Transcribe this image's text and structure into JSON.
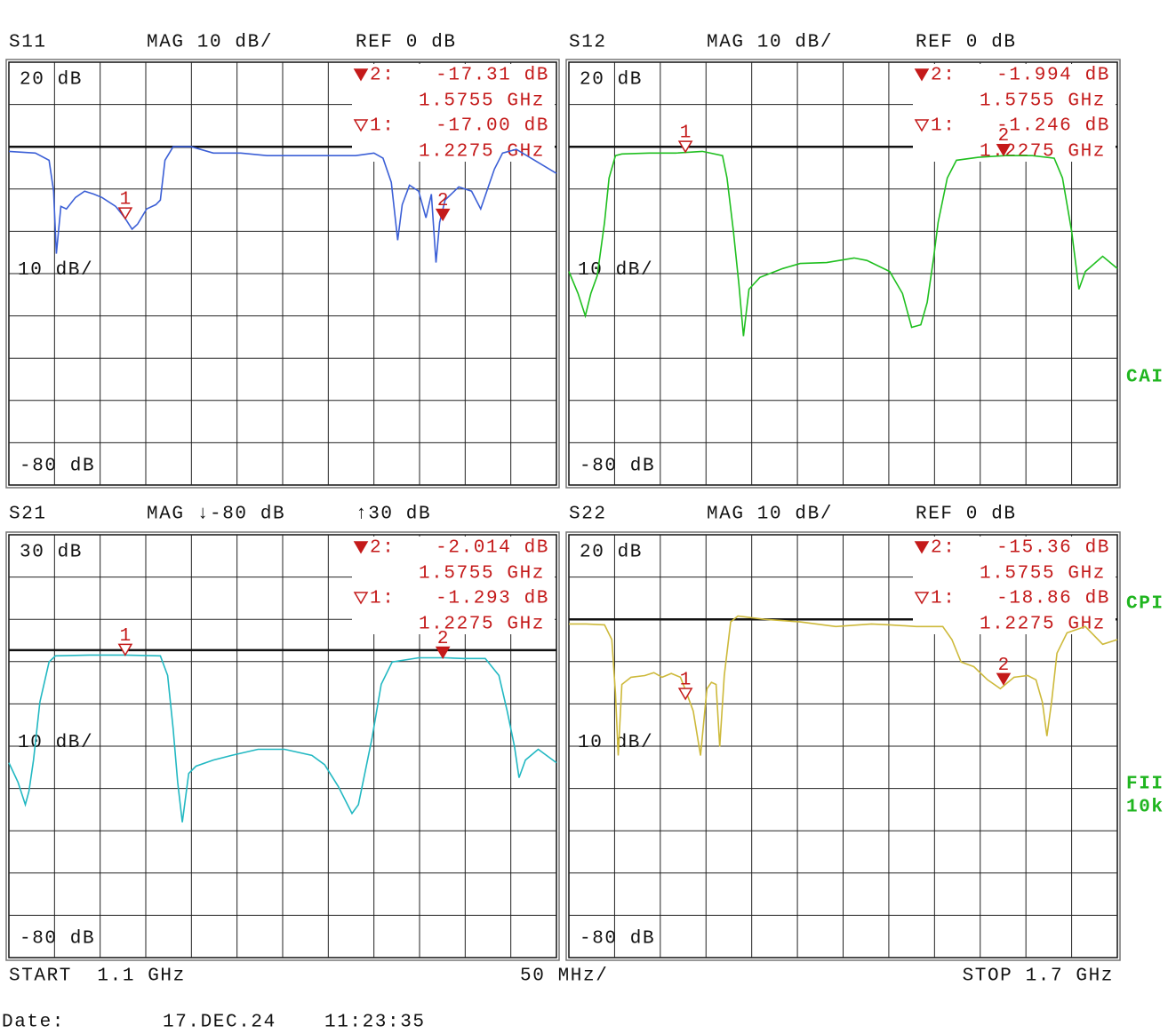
{
  "chart_data": [
    {
      "type": "line",
      "title": "S11",
      "scale_label": "MAG 10 dB/",
      "reference_label": "REF 0 dB",
      "division_label": "10 dB/",
      "xlim": [
        1.1,
        1.7
      ],
      "ylim": [
        -80,
        20
      ],
      "yticks": [
        {
          "value": 20,
          "label": "20 dB"
        },
        {
          "value": -80,
          "label": "-80 dB"
        }
      ],
      "reference_level": 0,
      "grid": true,
      "marker_color": "#c41a1a",
      "series": [
        {
          "color": "#3b5fd6",
          "x": [
            1.1,
            1.129,
            1.144,
            1.149,
            1.152,
            1.157,
            1.163,
            1.173,
            1.183,
            1.193,
            1.202,
            1.217,
            1.227,
            1.235,
            1.241,
            1.251,
            1.261,
            1.266,
            1.271,
            1.28,
            1.3,
            1.324,
            1.354,
            1.383,
            1.432,
            1.48,
            1.5,
            1.51,
            1.519,
            1.526,
            1.531,
            1.539,
            1.549,
            1.557,
            1.563,
            1.568,
            1.572,
            1.578,
            1.593,
            1.607,
            1.617,
            1.622,
            1.632,
            1.641,
            1.656,
            1.676,
            1.7
          ],
          "values": [
            -1.1,
            -1.5,
            -3.2,
            -10.5,
            -25.3,
            -14.1,
            -14.7,
            -12,
            -10.5,
            -11.2,
            -12,
            -14.1,
            -16.8,
            -19.5,
            -18.3,
            -14.7,
            -13.7,
            -12.6,
            -3.2,
            0,
            0,
            -1.5,
            -1.5,
            -2.1,
            -2.1,
            -2.1,
            -1.5,
            -2.7,
            -8.4,
            -22.1,
            -13.7,
            -9.1,
            -10.5,
            -16.8,
            -11.2,
            -27.4,
            -17.9,
            -12.6,
            -9.5,
            -10.5,
            -14.7,
            -11.6,
            -5.3,
            -1.5,
            -0.6,
            -3.2,
            -6.3
          ]
        }
      ],
      "markers": [
        {
          "name": "2",
          "tag": "2:",
          "filled": true,
          "x": 1.5755,
          "value": -17.31,
          "value_label": "-17.31 dB",
          "x_label": "1.5755 GHz"
        },
        {
          "name": "1",
          "tag": "1:",
          "filled": false,
          "x": 1.2275,
          "value": -17,
          "value_label": "-17.00 dB",
          "x_label": "1.2275 GHz"
        }
      ]
    },
    {
      "type": "line",
      "title": "S12",
      "scale_label": "MAG 10 dB/",
      "reference_label": "REF 0 dB",
      "division_label": "10 dB/",
      "xlim": [
        1.1,
        1.7
      ],
      "ylim": [
        -80,
        20
      ],
      "yticks": [
        {
          "value": 20,
          "label": "20 dB"
        },
        {
          "value": -80,
          "label": "-80 dB"
        }
      ],
      "reference_level": 0,
      "grid": true,
      "marker_color": "#c41a1a",
      "series": [
        {
          "color": "#1fbf1f",
          "x": [
            1.1,
            1.11,
            1.118,
            1.124,
            1.131,
            1.139,
            1.144,
            1.151,
            1.158,
            1.188,
            1.217,
            1.246,
            1.268,
            1.273,
            1.28,
            1.286,
            1.291,
            1.297,
            1.309,
            1.334,
            1.353,
            1.382,
            1.412,
            1.426,
            1.451,
            1.465,
            1.475,
            1.485,
            1.492,
            1.499,
            1.504,
            1.514,
            1.524,
            1.548,
            1.577,
            1.607,
            1.631,
            1.64,
            1.65,
            1.658,
            1.665,
            1.684,
            1.7
          ],
          "values": [
            -29.5,
            -34.7,
            -40,
            -34.7,
            -30.5,
            -17.9,
            -7.4,
            -2.1,
            -1.7,
            -1.5,
            -1.5,
            -1.1,
            -2.1,
            -7.4,
            -20,
            -32.6,
            -44.8,
            -33.7,
            -30.9,
            -28.8,
            -27.6,
            -27.4,
            -26.3,
            -26.9,
            -29.5,
            -34.7,
            -42.7,
            -42.1,
            -36.8,
            -26.3,
            -17.9,
            -7.4,
            -3.2,
            -2.5,
            -2.1,
            -2.1,
            -2.7,
            -7.4,
            -20,
            -33.7,
            -29.5,
            -25.9,
            -28.8
          ]
        }
      ],
      "markers": [
        {
          "name": "2",
          "tag": "2:",
          "filled": true,
          "x": 1.5755,
          "value": -1.994,
          "value_label": "-1.994 dB",
          "x_label": "1.5755 GHz"
        },
        {
          "name": "1",
          "tag": "1:",
          "filled": false,
          "x": 1.2275,
          "value": -1.246,
          "value_label": "-1.246 dB",
          "x_label": "1.2275 GHz"
        }
      ]
    },
    {
      "type": "line",
      "title": "S21",
      "scale_label": "MAG ↓-80 dB",
      "reference_label": "↑30 dB",
      "division_label": "10 dB/",
      "xlim": [
        1.1,
        1.7
      ],
      "ylim": [
        -80,
        30
      ],
      "yticks": [
        {
          "value": 30,
          "label": "30 dB"
        },
        {
          "value": -80,
          "label": "-80 dB"
        }
      ],
      "reference_level": 0,
      "grid": true,
      "marker_color": "#c41a1a",
      "series": [
        {
          "color": "#22b8c2",
          "x": [
            1.1,
            1.11,
            1.118,
            1.122,
            1.127,
            1.134,
            1.144,
            1.151,
            1.188,
            1.227,
            1.266,
            1.274,
            1.28,
            1.285,
            1.29,
            1.297,
            1.305,
            1.324,
            1.344,
            1.373,
            1.402,
            1.432,
            1.446,
            1.461,
            1.476,
            1.483,
            1.49,
            1.498,
            1.508,
            1.52,
            1.549,
            1.578,
            1.598,
            1.622,
            1.637,
            1.646,
            1.654,
            1.659,
            1.666,
            1.68,
            1.7
          ],
          "values": [
            -29.3,
            -34.4,
            -40.2,
            -36.7,
            -28.6,
            -13.5,
            -3.1,
            -1.5,
            -1.3,
            -1.3,
            -1.5,
            -6.6,
            -20.5,
            -34.4,
            -44.8,
            -32.1,
            -30.2,
            -28.6,
            -27.4,
            -25.8,
            -25.8,
            -27.4,
            -29.8,
            -35.5,
            -42.5,
            -40.2,
            -32.1,
            -22.8,
            -8.9,
            -3.1,
            -2,
            -2,
            -2.2,
            -2.2,
            -6.6,
            -15.9,
            -25.1,
            -33.2,
            -28.6,
            -25.8,
            -29.3
          ]
        }
      ],
      "markers": [
        {
          "name": "2",
          "tag": "2:",
          "filled": true,
          "x": 1.5755,
          "value": -2.014,
          "value_label": "-2.014 dB",
          "x_label": "1.5755 GHz"
        },
        {
          "name": "1",
          "tag": "1:",
          "filled": false,
          "x": 1.2275,
          "value": -1.293,
          "value_label": "-1.293 dB",
          "x_label": "1.2275 GHz"
        }
      ]
    },
    {
      "type": "line",
      "title": "S22",
      "scale_label": "MAG 10 dB/",
      "reference_label": "REF 0 dB",
      "division_label": "10 dB/",
      "xlim": [
        1.1,
        1.7
      ],
      "ylim": [
        -80,
        20
      ],
      "yticks": [
        {
          "value": 20,
          "label": "20 dB"
        },
        {
          "value": -80,
          "label": "-80 dB"
        }
      ],
      "reference_level": 0,
      "grid": true,
      "marker_color": "#c41a1a",
      "series": [
        {
          "color": "#cdb93a",
          "x": [
            1.1,
            1.119,
            1.139,
            1.147,
            1.151,
            1.154,
            1.158,
            1.168,
            1.183,
            1.193,
            1.202,
            1.212,
            1.222,
            1.227,
            1.236,
            1.244,
            1.251,
            1.256,
            1.261,
            1.265,
            1.27,
            1.277,
            1.285,
            1.314,
            1.353,
            1.392,
            1.431,
            1.451,
            1.48,
            1.509,
            1.519,
            1.529,
            1.543,
            1.558,
            1.572,
            1.587,
            1.602,
            1.611,
            1.618,
            1.623,
            1.628,
            1.634,
            1.645,
            1.665,
            1.684,
            1.7
          ],
          "values": [
            -1.1,
            -1.1,
            -1.3,
            -4.8,
            -17.5,
            -32.2,
            -15.4,
            -13.7,
            -13.3,
            -12.6,
            -13.7,
            -12.8,
            -13.7,
            -16.4,
            -21.7,
            -32.2,
            -16.4,
            -14.9,
            -15.4,
            -30.1,
            -13.3,
            -0.6,
            0.8,
            0,
            -0.6,
            -1.7,
            -1.1,
            -1.3,
            -1.7,
            -1.7,
            -4.8,
            -10.1,
            -11.2,
            -14.3,
            -16.4,
            -13.7,
            -13.3,
            -14.3,
            -19.6,
            -27.6,
            -19.6,
            -8,
            -3.2,
            -1.7,
            -5.9,
            -4.8
          ]
        }
      ],
      "markers": [
        {
          "name": "2",
          "tag": "2:",
          "filled": true,
          "x": 1.5755,
          "value": -15.36,
          "value_label": "-15.36 dB",
          "x_label": "1.5755 GHz"
        },
        {
          "name": "1",
          "tag": "1:",
          "filled": false,
          "x": 1.2275,
          "value": -18.86,
          "value_label": "-18.86 dB",
          "x_label": "1.2275 GHz"
        }
      ]
    }
  ],
  "sweep": {
    "start": "START  1.1 GHz",
    "span": "50 MHz/",
    "stop": "STOP 1.7 GHz"
  },
  "status_labels": [
    "CAI",
    "CPI",
    "FII",
    "10k"
  ],
  "date": {
    "label": "Date:",
    "day": "17.DEC.24",
    "time": "11:23:35"
  }
}
